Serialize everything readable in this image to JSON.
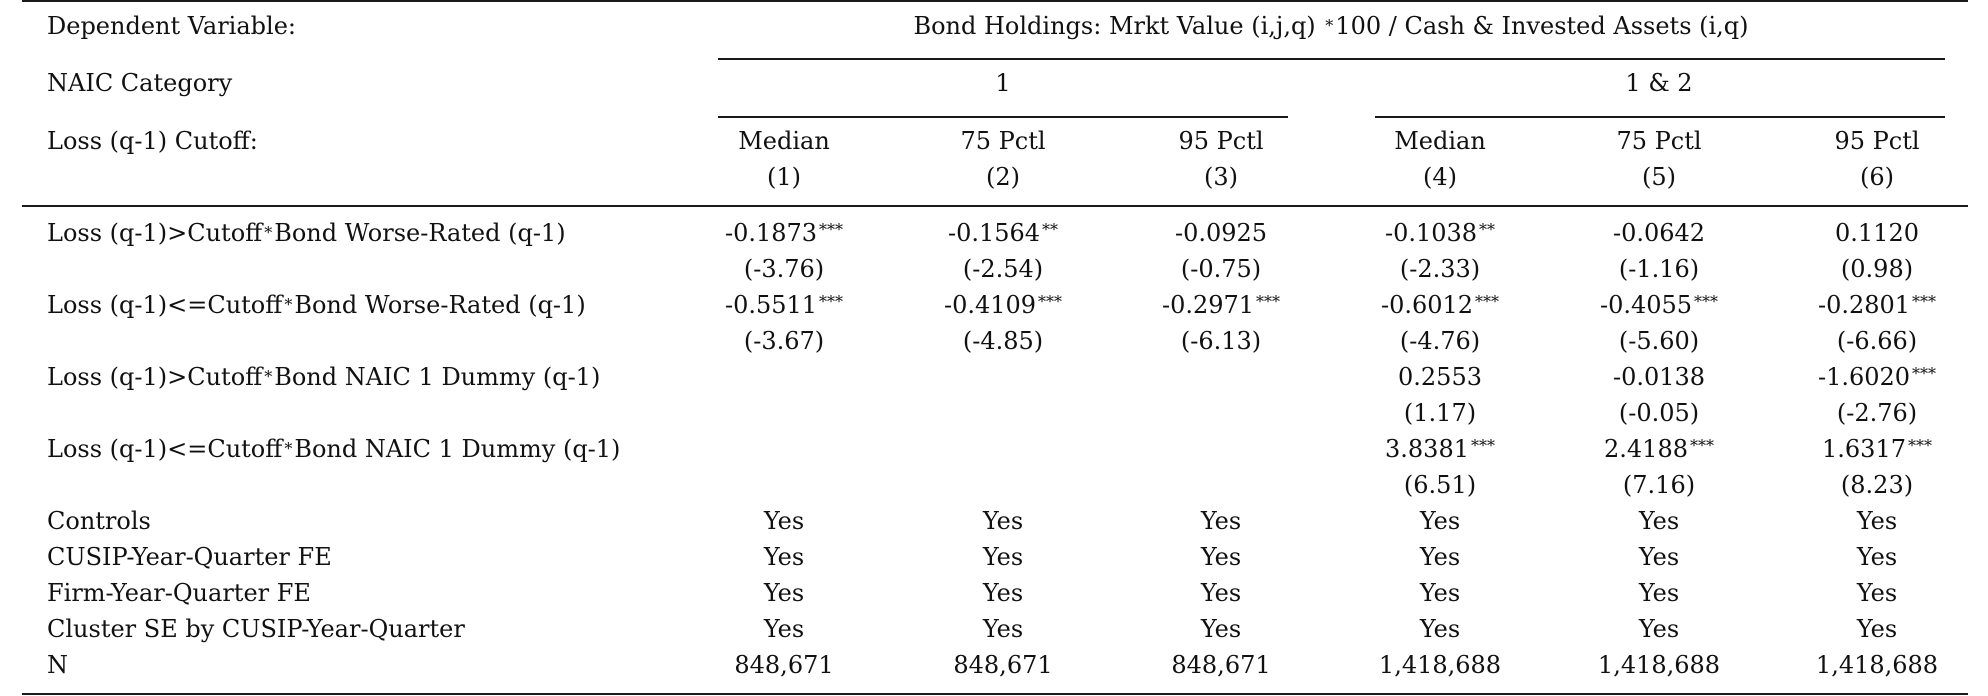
{
  "header": {
    "dep_var_label": "Dependent Variable:",
    "dep_var_pre": "Bond Holdings: Mrkt Value (i,j,q) ",
    "dep_var_star": "*",
    "dep_var_post": "100 / Cash & Invested Assets (i,q)",
    "naic_label": "NAIC Category",
    "naic_group1": "1",
    "naic_group2": "1 & 2",
    "cutoff_label": "Loss (q-1) Cutoff:",
    "columns": [
      {
        "name": "Median",
        "num": "(1)"
      },
      {
        "name": "75 Pctl",
        "num": "(2)"
      },
      {
        "name": "95 Pctl",
        "num": "(3)"
      },
      {
        "name": "Median",
        "num": "(4)"
      },
      {
        "name": "75 Pctl",
        "num": "(5)"
      },
      {
        "name": "95 Pctl",
        "num": "(6)"
      }
    ]
  },
  "rows": [
    {
      "label_pre": "Loss (q-1)>Cutoff",
      "label_star": "*",
      "label_post": "Bond Worse-Rated (q-1)",
      "coef": [
        "-0.1873",
        "-0.1564",
        "-0.0925",
        "-0.1038",
        "-0.0642",
        "0.1120"
      ],
      "stars": [
        "***",
        "**",
        "",
        "**",
        "",
        ""
      ],
      "t": [
        "(-3.76)",
        "(-2.54)",
        "(-0.75)",
        "(-2.33)",
        "(-1.16)",
        "(0.98)"
      ]
    },
    {
      "label_pre": "Loss (q-1)<=Cutoff",
      "label_star": "*",
      "label_post": "Bond Worse-Rated (q-1)",
      "coef": [
        "-0.5511",
        "-0.4109",
        "-0.2971",
        "-0.6012",
        "-0.4055",
        "-0.2801"
      ],
      "stars": [
        "***",
        "***",
        "***",
        "***",
        "***",
        "***"
      ],
      "t": [
        "(-3.67)",
        "(-4.85)",
        "(-6.13)",
        "(-4.76)",
        "(-5.60)",
        "(-6.66)"
      ]
    },
    {
      "label_pre": "Loss (q-1)>Cutoff",
      "label_star": "*",
      "label_post": "Bond NAIC 1 Dummy (q-1)",
      "coef": [
        "",
        "",
        "",
        "0.2553",
        "-0.0138",
        "-1.6020"
      ],
      "stars": [
        "",
        "",
        "",
        "",
        "",
        "***"
      ],
      "t": [
        "",
        "",
        "",
        "(1.17)",
        "(-0.05)",
        "(-2.76)"
      ]
    },
    {
      "label_pre": "Loss (q-1)<=Cutoff",
      "label_star": "*",
      "label_post": "Bond NAIC 1 Dummy (q-1)",
      "coef": [
        "",
        "",
        "",
        "3.8381",
        "2.4188",
        "1.6317"
      ],
      "stars": [
        "",
        "",
        "",
        "***",
        "***",
        "***"
      ],
      "t": [
        "",
        "",
        "",
        "(6.51)",
        "(7.16)",
        "(8.23)"
      ]
    }
  ],
  "footer_rows": [
    {
      "label": "Controls",
      "values": [
        "Yes",
        "Yes",
        "Yes",
        "Yes",
        "Yes",
        "Yes"
      ]
    },
    {
      "label": "CUSIP-Year-Quarter FE",
      "values": [
        "Yes",
        "Yes",
        "Yes",
        "Yes",
        "Yes",
        "Yes"
      ]
    },
    {
      "label": "Firm-Year-Quarter FE",
      "values": [
        "Yes",
        "Yes",
        "Yes",
        "Yes",
        "Yes",
        "Yes"
      ]
    },
    {
      "label": "Cluster SE by CUSIP-Year-Quarter",
      "values": [
        "Yes",
        "Yes",
        "Yes",
        "Yes",
        "Yes",
        "Yes"
      ]
    },
    {
      "label": "N",
      "values": [
        "848,671",
        "848,671",
        "848,671",
        "1,418,688",
        "1,418,688",
        "1,418,688"
      ]
    }
  ]
}
